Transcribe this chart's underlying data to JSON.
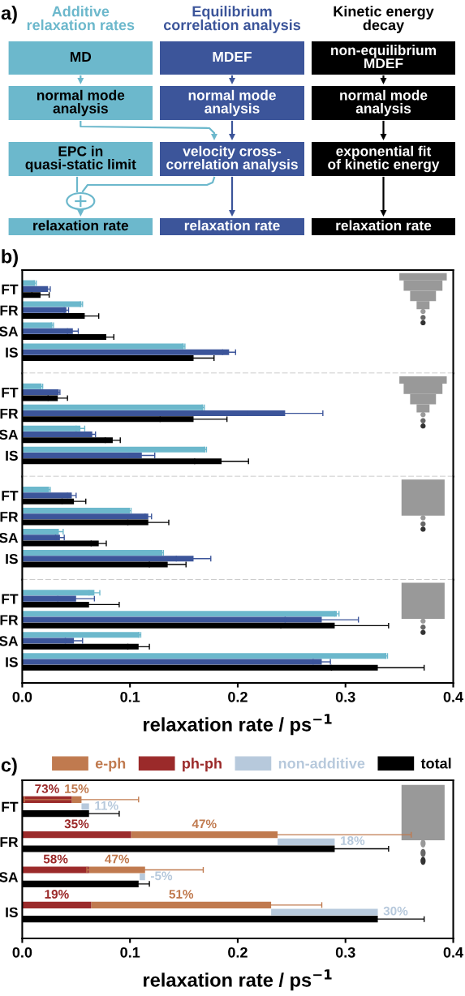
{
  "chart_data": [
    {
      "type": "other",
      "title": "a)",
      "colors": [
        "#6cb8cc",
        "#3c559a",
        "#000000"
      ],
      "annotations": [
        "Additive\nrelaxation rates",
        "Equilibrium\ncorrelation analysis",
        "Kinetic energy\ndecay",
        "MD",
        "MDEF",
        "non-equilibrium\nMDEF",
        "normal mode\nanalysis",
        "normal mode\nanalysis",
        "normal mode\nanalysis",
        "EPC in\nquasi-static limit",
        "velocity cross-\ncorrelation analysis",
        "exponential fit\nof kinetic energy",
        "relaxation rate",
        "relaxation rate",
        "relaxation rate"
      ]
    },
    {
      "type": "bar",
      "orientation": "horizontal",
      "title": "b)",
      "categories": [
        "FT",
        "FR",
        "SA",
        "IS"
      ],
      "series": [
        {
          "color": "#6cb8cc",
          "values": [
            0.012,
            0.055,
            0.028,
            0.15
          ],
          "errors": [
            0.001,
            0.001,
            0.001,
            0.001
          ]
        },
        {
          "color": "#3c559a",
          "values": [
            0.024,
            0.041,
            0.047,
            0.192
          ],
          "errors": [
            0.002,
            0.002,
            0.005,
            0.006
          ]
        },
        {
          "color": "#000000",
          "values": [
            0.017,
            0.058,
            0.078,
            0.159
          ],
          "errors": [
            0.008,
            0.013,
            0.007,
            0.019
          ]
        }
      ],
      "xlim": [
        0,
        0.4
      ],
      "tick_labels": "y"
    },
    {
      "type": "bar",
      "orientation": "horizontal",
      "categories": [
        "FT",
        "FR",
        "SA",
        "IS"
      ],
      "series": [
        {
          "color": "#6cb8cc",
          "values": [
            0.018,
            0.168,
            0.054,
            0.17
          ],
          "errors": [
            0.001,
            0.001,
            0.004,
            0.001
          ]
        },
        {
          "color": "#3c559a",
          "values": [
            0.034,
            0.244,
            0.065,
            0.111
          ],
          "errors": [
            0.001,
            0.035,
            0.003,
            0.012
          ]
        },
        {
          "color": "#000000",
          "values": [
            0.033,
            0.159,
            0.084,
            0.185
          ],
          "errors": [
            0.009,
            0.031,
            0.007,
            0.025
          ]
        }
      ],
      "xlim": [
        0,
        0.4
      ],
      "tick_labels": "y"
    },
    {
      "type": "bar",
      "orientation": "horizontal",
      "categories": [
        "FT",
        "FR",
        "SA",
        "IS"
      ],
      "series": [
        {
          "color": "#6cb8cc",
          "values": [
            0.025,
            0.1,
            0.034,
            0.13
          ],
          "errors": [
            0.001,
            0.001,
            0.004,
            0.001
          ]
        },
        {
          "color": "#3c559a",
          "values": [
            0.046,
            0.117,
            0.035,
            0.159
          ],
          "errors": [
            0.004,
            0.003,
            0.004,
            0.016
          ]
        },
        {
          "color": "#000000",
          "values": [
            0.048,
            0.117,
            0.071,
            0.135
          ],
          "errors": [
            0.011,
            0.019,
            0.007,
            0.017
          ]
        }
      ],
      "xlim": [
        0,
        0.4
      ],
      "tick_labels": "y"
    },
    {
      "type": "bar",
      "orientation": "horizontal",
      "categories": [
        "FT",
        "FR",
        "SA",
        "IS"
      ],
      "series": [
        {
          "color": "#6cb8cc",
          "values": [
            0.067,
            0.292,
            0.109,
            0.338
          ],
          "errors": [
            0.005,
            0.002,
            0.001,
            0.001
          ]
        },
        {
          "color": "#3c559a",
          "values": [
            0.05,
            0.278,
            0.048,
            0.278
          ],
          "errors": [
            0.017,
            0.034,
            0.008,
            0.008
          ]
        },
        {
          "color": "#000000",
          "values": [
            0.062,
            0.29,
            0.108,
            0.33
          ],
          "errors": [
            0.028,
            0.05,
            0.01,
            0.043
          ]
        }
      ],
      "xlim": [
        0,
        0.4
      ],
      "xticks": [
        {
          "value": 0,
          "label": "0.0"
        },
        0.1,
        0.2,
        0.3,
        0.4
      ],
      "xlabel": "relaxation rate / ps$^{−1}$"
    },
    {
      "type": "bar",
      "orientation": "horizontal",
      "title": "c)",
      "categories": [
        "FT",
        "FR",
        "SA",
        "IS"
      ],
      "legend": "top",
      "series": [
        {
          "name": "e-ph",
          "color": "#c07a4f",
          "base": [
            0.046,
            0.101,
            0.062,
            0.064
          ],
          "values": [
            0.009,
            0.136,
            0.052,
            0.167
          ],
          "errors": [
            0.053,
            0.124,
            0.054,
            0.047
          ]
        },
        {
          "name": "ph-ph",
          "color": "#9b2a2a",
          "values": [
            0.046,
            0.101,
            0.062,
            0.064
          ]
        },
        {
          "name": "non-additive",
          "color": "#b7c9dc",
          "base": [
            0.055,
            0.237,
            0.114,
            0.231
          ],
          "values": [
            0.007,
            0.053,
            -0.005,
            0.099
          ]
        },
        {
          "name": "total",
          "color": "#000000",
          "values": [
            0.062,
            0.29,
            0.108,
            0.33
          ],
          "errors": [
            0.028,
            0.05,
            0.01,
            0.043
          ]
        }
      ],
      "annotations": [
        {
          "text": "73%",
          "x": 0.023,
          "y": "FT"
        },
        {
          "text": "15%",
          "x": 0.0505,
          "y": "FT"
        },
        {
          "text": "11%",
          "x": 0.062,
          "y": "FT"
        },
        {
          "text": "35%",
          "x": 0.0505,
          "y": "FR"
        },
        {
          "text": "47%",
          "x": 0.169,
          "y": "FR"
        },
        {
          "text": "18%",
          "x": 0.29,
          "y": "FR"
        },
        {
          "text": "58%",
          "x": 0.031,
          "y": "SA"
        },
        {
          "text": "47%",
          "x": 0.088,
          "y": "SA"
        },
        {
          "text": "-5%",
          "x": 0.114,
          "y": "SA"
        },
        {
          "text": "19%",
          "x": 0.032,
          "y": "IS"
        },
        {
          "text": "51%",
          "x": 0.1475,
          "y": "IS"
        },
        {
          "text": "30%",
          "x": 0.33,
          "y": "IS"
        }
      ],
      "xlim": [
        0,
        0.4
      ],
      "xticks": [
        {
          "value": 0,
          "label": "0.0"
        },
        0.1,
        0.2,
        0.3,
        0.4
      ],
      "xlabel": "relaxation rate / ps$^{−1}$"
    }
  ]
}
